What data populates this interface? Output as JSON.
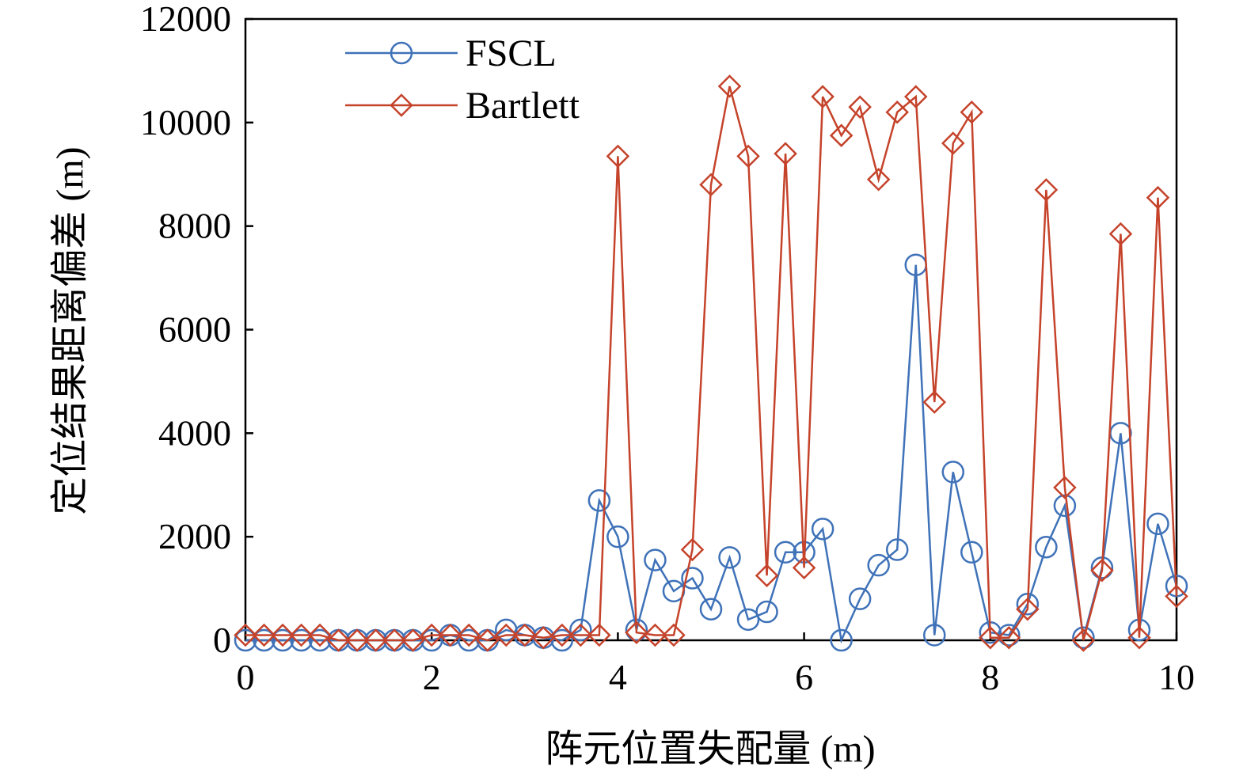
{
  "chart_data": {
    "type": "line",
    "xlabel": "阵元位置失配量 (m)",
    "ylabel": "定位结果距离偏差 (m)",
    "xlim": [
      0,
      10
    ],
    "ylim": [
      0,
      12000
    ],
    "xticks": [
      0,
      2,
      4,
      6,
      8,
      10
    ],
    "yticks": [
      0,
      2000,
      4000,
      6000,
      8000,
      10000,
      12000
    ],
    "grid": false,
    "legend_position": "top-left",
    "x": [
      0,
      0.2,
      0.4,
      0.6,
      0.8,
      1.0,
      1.2,
      1.4,
      1.6,
      1.8,
      2.0,
      2.2,
      2.4,
      2.6,
      2.8,
      3.0,
      3.2,
      3.4,
      3.6,
      3.8,
      4.0,
      4.2,
      4.4,
      4.6,
      4.8,
      5.0,
      5.2,
      5.4,
      5.6,
      5.8,
      6.0,
      6.2,
      6.4,
      6.6,
      6.8,
      7.0,
      7.2,
      7.4,
      7.6,
      7.8,
      8.0,
      8.2,
      8.4,
      8.6,
      8.8,
      9.0,
      9.2,
      9.4,
      9.6,
      9.8,
      10.0
    ],
    "series": [
      {
        "name": "FSCL",
        "color": "#3f72b8",
        "marker": "circle",
        "values": [
          0,
          0,
          0,
          0,
          0,
          0,
          0,
          0,
          0,
          0,
          0,
          100,
          0,
          0,
          200,
          100,
          50,
          0,
          200,
          2700,
          2000,
          200,
          1550,
          950,
          1200,
          600,
          1600,
          400,
          550,
          1700,
          1700,
          2150,
          0,
          800,
          1450,
          1750,
          7250,
          100,
          3250,
          1700,
          150,
          100,
          700,
          1800,
          2600,
          50,
          1400,
          4000,
          200,
          2250,
          1050
        ]
      },
      {
        "name": "Bartlett",
        "color": "#c5432b",
        "marker": "diamond",
        "values": [
          100,
          100,
          100,
          100,
          100,
          0,
          0,
          0,
          0,
          0,
          100,
          100,
          100,
          0,
          100,
          100,
          50,
          100,
          100,
          100,
          9350,
          150,
          100,
          100,
          1750,
          8800,
          10700,
          9350,
          1250,
          9400,
          1400,
          10500,
          9750,
          10300,
          8900,
          10200,
          10500,
          4600,
          9600,
          10200,
          50,
          50,
          600,
          8700,
          2950,
          0,
          1350,
          7850,
          50,
          8550,
          850
        ]
      }
    ]
  }
}
